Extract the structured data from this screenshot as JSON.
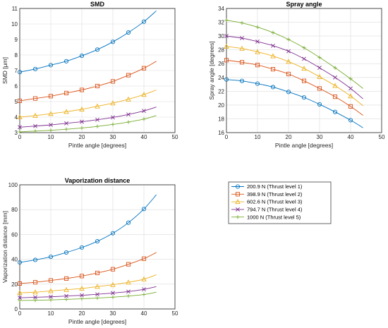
{
  "chart_data": [
    {
      "type": "line",
      "title": "SMD",
      "xlabel": "Pintle angle [degrees]",
      "ylabel": "SMD [μm]",
      "xlim": [
        0,
        50
      ],
      "ylim": [
        3,
        11
      ],
      "xticks": [
        "0",
        "10",
        "20",
        "30",
        "40",
        "50"
      ],
      "yticks": [
        "3",
        "4",
        "5",
        "6",
        "7",
        "8",
        "9",
        "10",
        "11"
      ],
      "series": [
        {
          "name": "200.9 N (Thrust level 1)",
          "x": [
            0,
            5,
            10,
            15,
            20,
            25,
            30,
            35,
            40,
            44
          ],
          "values": [
            6.9,
            7.1,
            7.35,
            7.6,
            7.95,
            8.35,
            8.85,
            9.45,
            10.15,
            10.85
          ]
        },
        {
          "name": "398.9 N (Thrust level 2)",
          "x": [
            0,
            5,
            10,
            15,
            20,
            25,
            30,
            35,
            40,
            44
          ],
          "values": [
            5.05,
            5.2,
            5.35,
            5.55,
            5.75,
            6.0,
            6.3,
            6.7,
            7.15,
            7.6
          ]
        },
        {
          "name": "602.6 N (Thrust level 3)",
          "x": [
            0,
            5,
            10,
            15,
            20,
            25,
            30,
            35,
            40,
            44
          ],
          "values": [
            4.0,
            4.1,
            4.22,
            4.35,
            4.5,
            4.7,
            4.9,
            5.15,
            5.45,
            5.75
          ]
        },
        {
          "name": "794.7 N (Thrust level 4)",
          "x": [
            0,
            5,
            10,
            15,
            20,
            25,
            30,
            35,
            40,
            44
          ],
          "values": [
            3.35,
            3.42,
            3.5,
            3.6,
            3.7,
            3.83,
            3.98,
            4.17,
            4.4,
            4.65
          ]
        },
        {
          "name": "1000 N (Thrust level 5)",
          "x": [
            0,
            5,
            10,
            15,
            20,
            25,
            30,
            35,
            40,
            44
          ],
          "values": [
            3.05,
            3.1,
            3.15,
            3.22,
            3.3,
            3.4,
            3.53,
            3.68,
            3.87,
            4.1
          ]
        }
      ]
    },
    {
      "type": "line",
      "title": "Spray angle",
      "xlabel": "Pintle angle [degrees]",
      "ylabel": "Spray angle [degrees]",
      "xlim": [
        0,
        50
      ],
      "ylim": [
        16,
        34
      ],
      "xticks": [
        "0",
        "10",
        "20",
        "30",
        "40",
        "50"
      ],
      "yticks": [
        "16",
        "18",
        "20",
        "22",
        "24",
        "26",
        "28",
        "30",
        "32",
        "34"
      ],
      "series": [
        {
          "name": "200.9 N (Thrust level 1)",
          "x": [
            0,
            5,
            10,
            15,
            20,
            25,
            30,
            35,
            40,
            44
          ],
          "values": [
            23.7,
            23.5,
            23.1,
            22.6,
            21.9,
            21.1,
            20.1,
            19.0,
            17.8,
            16.7
          ]
        },
        {
          "name": "398.9 N (Thrust level 2)",
          "x": [
            0,
            5,
            10,
            15,
            20,
            25,
            30,
            35,
            40,
            44
          ],
          "values": [
            26.5,
            26.2,
            25.8,
            25.2,
            24.5,
            23.5,
            22.4,
            21.2,
            19.8,
            18.5
          ]
        },
        {
          "name": "602.6 N (Thrust level 3)",
          "x": [
            0,
            5,
            10,
            15,
            20,
            25,
            30,
            35,
            40,
            44
          ],
          "values": [
            28.5,
            28.2,
            27.7,
            27.1,
            26.3,
            25.3,
            24.1,
            22.8,
            21.3,
            19.9
          ]
        },
        {
          "name": "794.7 N (Thrust level 4)",
          "x": [
            0,
            5,
            10,
            15,
            20,
            25,
            30,
            35,
            40,
            44
          ],
          "values": [
            30.0,
            29.7,
            29.2,
            28.6,
            27.8,
            26.7,
            25.4,
            24.0,
            22.4,
            20.9
          ]
        },
        {
          "name": "1000 N (Thrust level 5)",
          "x": [
            0,
            5,
            10,
            15,
            20,
            25,
            30,
            35,
            40,
            44
          ],
          "values": [
            32.3,
            31.9,
            31.3,
            30.5,
            29.5,
            28.3,
            26.9,
            25.4,
            23.8,
            22.4
          ]
        }
      ]
    },
    {
      "type": "line",
      "title": "Vaporization distance",
      "xlabel": "Pintle angle [degrees]",
      "ylabel": "Vaporization distance [mm]",
      "xlim": [
        0,
        50
      ],
      "ylim": [
        0,
        100
      ],
      "xticks": [
        "0",
        "10",
        "20",
        "30",
        "40",
        "50"
      ],
      "yticks": [
        "0",
        "20",
        "40",
        "60",
        "80",
        "100"
      ],
      "series": [
        {
          "name": "200.9 N (Thrust level 1)",
          "x": [
            0,
            5,
            10,
            15,
            20,
            25,
            30,
            35,
            40,
            44
          ],
          "values": [
            37.5,
            39.5,
            42.0,
            45.5,
            49.5,
            54.5,
            61.0,
            69.5,
            80.5,
            92.0
          ]
        },
        {
          "name": "398.9 N (Thrust level 2)",
          "x": [
            0,
            5,
            10,
            15,
            20,
            25,
            30,
            35,
            40,
            44
          ],
          "values": [
            20.5,
            21.5,
            23.0,
            24.5,
            26.5,
            29.0,
            32.0,
            36.0,
            40.5,
            45.5
          ]
        },
        {
          "name": "602.6 N (Thrust level 3)",
          "x": [
            0,
            5,
            10,
            15,
            20,
            25,
            30,
            35,
            40,
            44
          ],
          "values": [
            13.0,
            13.5,
            14.5,
            15.5,
            16.5,
            18.0,
            19.5,
            21.5,
            24.0,
            27.5
          ]
        },
        {
          "name": "794.7 N (Thrust level 4)",
          "x": [
            0,
            5,
            10,
            15,
            20,
            25,
            30,
            35,
            40,
            44
          ],
          "values": [
            9.0,
            9.4,
            9.8,
            10.4,
            11.0,
            11.8,
            12.8,
            14.0,
            15.8,
            18.0
          ]
        },
        {
          "name": "1000 N (Thrust level 5)",
          "x": [
            0,
            5,
            10,
            15,
            20,
            25,
            30,
            35,
            40,
            44
          ],
          "values": [
            6.8,
            7.0,
            7.3,
            7.7,
            8.2,
            8.8,
            9.5,
            10.4,
            11.6,
            13.5
          ]
        }
      ]
    }
  ],
  "legend": {
    "entries": [
      "200.9 N (Thrust level 1)",
      "398.9 N (Thrust level 2)",
      "602.6 N (Thrust level 3)",
      "794.7 N (Thrust level 4)",
      "1000 N (Thrust level 5)"
    ]
  },
  "series_style": [
    {
      "color": "#0072BD",
      "marker": "circle"
    },
    {
      "color": "#D95319",
      "marker": "square"
    },
    {
      "color": "#EDB120",
      "marker": "triangle"
    },
    {
      "color": "#7E2F8E",
      "marker": "x"
    },
    {
      "color": "#77AC30",
      "marker": "plus"
    }
  ]
}
